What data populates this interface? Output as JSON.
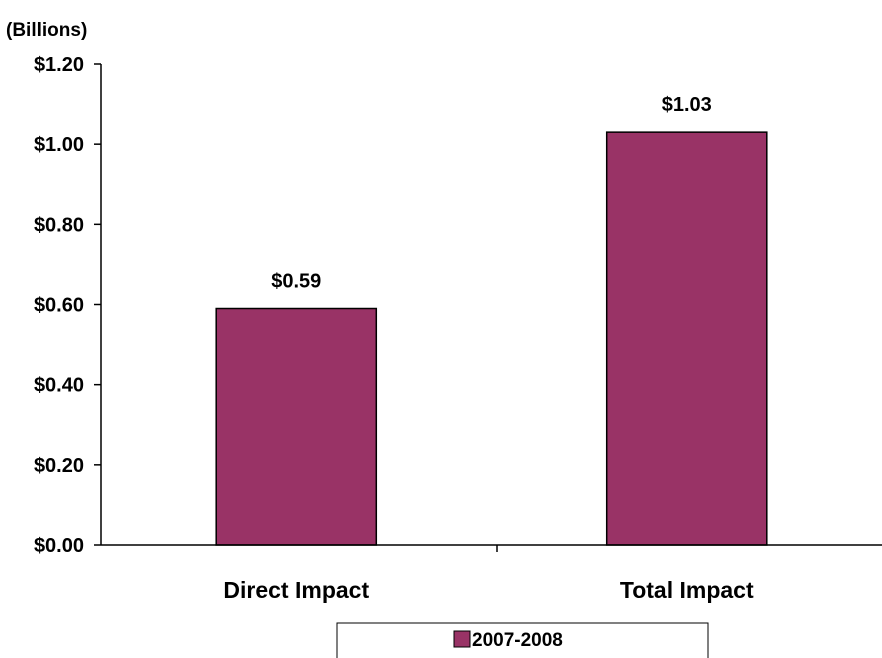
{
  "chart_data": {
    "type": "bar",
    "unit_label": "(Billions)",
    "categories": [
      "Direct Impact",
      "Total Impact"
    ],
    "series": [
      {
        "name": "2007-2008",
        "values": [
          0.59,
          1.03
        ],
        "data_labels": [
          "$0.59",
          "$1.03"
        ],
        "color": "#993366"
      }
    ],
    "ylim": [
      0,
      1.2
    ],
    "y_ticks": [
      0,
      0.2,
      0.4,
      0.6,
      0.8,
      1.0,
      1.2
    ],
    "y_tick_labels": [
      "$0.00",
      "$0.20",
      "$0.40",
      "$0.60",
      "$0.80",
      "$1.00",
      "$1.20"
    ],
    "grid": false,
    "legend_position": "bottom"
  }
}
